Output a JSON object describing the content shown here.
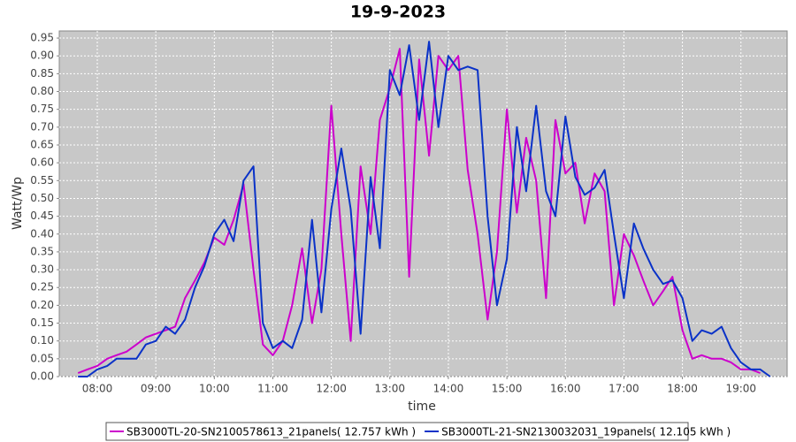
{
  "chart_data": {
    "type": "line",
    "title": "19-9-2023",
    "x_label": "time",
    "y_label": "Watt/Wp",
    "x": [
      7.67,
      7.83,
      8,
      8.17,
      8.33,
      8.5,
      8.67,
      8.83,
      9,
      9.17,
      9.33,
      9.5,
      9.67,
      9.83,
      10,
      10.17,
      10.33,
      10.5,
      10.67,
      10.83,
      11,
      11.17,
      11.33,
      11.5,
      11.67,
      11.83,
      12,
      12.17,
      12.33,
      12.5,
      12.67,
      12.83,
      13,
      13.17,
      13.33,
      13.5,
      13.67,
      13.83,
      14,
      14.17,
      14.33,
      14.5,
      14.67,
      14.83,
      15,
      15.17,
      15.33,
      15.5,
      15.67,
      15.83,
      16,
      16.17,
      16.33,
      16.5,
      16.67,
      16.83,
      17,
      17.17,
      17.33,
      17.5,
      17.67,
      17.83,
      18,
      18.17,
      18.33,
      18.5,
      18.67,
      18.83,
      19,
      19.17,
      19.33,
      19.5
    ],
    "series": [
      {
        "name": "SB3000TL-20-SN2100578613_21panels( 12.757 kWh )",
        "color": "#cc00cc",
        "values": [
          0.01,
          0.02,
          0.03,
          0.05,
          0.06,
          0.07,
          0.09,
          0.11,
          0.12,
          0.13,
          0.14,
          0.22,
          0.27,
          0.32,
          0.39,
          0.37,
          0.44,
          0.54,
          0.3,
          0.09,
          0.06,
          0.1,
          0.2,
          0.36,
          0.15,
          0.3,
          0.76,
          0.4,
          0.1,
          0.59,
          0.4,
          0.72,
          0.81,
          0.92,
          0.28,
          0.89,
          0.62,
          0.9,
          0.86,
          0.9,
          0.58,
          0.4,
          0.16,
          0.35,
          0.75,
          0.46,
          0.67,
          0.55,
          0.22,
          0.72,
          0.57,
          0.6,
          0.43,
          0.57,
          0.52,
          0.2,
          0.4,
          0.34,
          0.27,
          0.2,
          0.24,
          0.28,
          0.13,
          0.05,
          0.06,
          0.05,
          0.05,
          0.04,
          0.02,
          0.02,
          0.01,
          null
        ]
      },
      {
        "name": "SB3000TL-21-SN2130032031_19panels( 12.105 kWh )",
        "color": "#0a32c8",
        "values": [
          0.0,
          0.0,
          0.02,
          0.03,
          0.05,
          0.05,
          0.05,
          0.09,
          0.1,
          0.14,
          0.12,
          0.16,
          0.25,
          0.31,
          0.4,
          0.44,
          0.38,
          0.55,
          0.59,
          0.15,
          0.08,
          0.1,
          0.08,
          0.16,
          0.44,
          0.18,
          0.47,
          0.64,
          0.47,
          0.12,
          0.56,
          0.36,
          0.86,
          0.79,
          0.93,
          0.72,
          0.94,
          0.7,
          0.9,
          0.86,
          0.87,
          0.86,
          0.45,
          0.2,
          0.33,
          0.7,
          0.52,
          0.76,
          0.52,
          0.45,
          0.73,
          0.56,
          0.51,
          0.53,
          0.58,
          0.4,
          0.22,
          0.43,
          0.36,
          0.3,
          0.26,
          0.27,
          0.22,
          0.1,
          0.13,
          0.12,
          0.14,
          0.08,
          0.04,
          0.02,
          0.02,
          0.0
        ]
      }
    ],
    "xlim": [
      7.35,
      19.79
    ],
    "ylim": [
      0,
      0.97
    ],
    "xticks": [
      {
        "value": 8,
        "label": "08:00"
      },
      {
        "value": 9,
        "label": "09:00"
      },
      {
        "value": 10,
        "label": "10:00"
      },
      {
        "value": 11,
        "label": "11:00"
      },
      {
        "value": 12,
        "label": "12:00"
      },
      {
        "value": 13,
        "label": "13:00"
      },
      {
        "value": 14,
        "label": "14:00"
      },
      {
        "value": 15,
        "label": "15:00"
      },
      {
        "value": 16,
        "label": "16:00"
      },
      {
        "value": 17,
        "label": "17:00"
      },
      {
        "value": 18,
        "label": "18:00"
      },
      {
        "value": 19,
        "label": "19:00"
      }
    ],
    "yticks": [
      {
        "value": 0,
        "label": "0.00"
      },
      {
        "value": 0.05,
        "label": "0.05"
      },
      {
        "value": 0.1,
        "label": "0.10"
      },
      {
        "value": 0.15,
        "label": "0.15"
      },
      {
        "value": 0.2,
        "label": "0.20"
      },
      {
        "value": 0.25,
        "label": "0.25"
      },
      {
        "value": 0.3,
        "label": "0.30"
      },
      {
        "value": 0.35,
        "label": "0.35"
      },
      {
        "value": 0.4,
        "label": "0.40"
      },
      {
        "value": 0.45,
        "label": "0.45"
      },
      {
        "value": 0.5,
        "label": "0.50"
      },
      {
        "value": 0.55,
        "label": "0.55"
      },
      {
        "value": 0.6,
        "label": "0.60"
      },
      {
        "value": 0.65,
        "label": "0.65"
      },
      {
        "value": 0.7,
        "label": "0.70"
      },
      {
        "value": 0.75,
        "label": "0.75"
      },
      {
        "value": 0.8,
        "label": "0.80"
      },
      {
        "value": 0.85,
        "label": "0.85"
      },
      {
        "value": 0.9,
        "label": "0.90"
      },
      {
        "value": 0.95,
        "label": "0.95"
      }
    ],
    "grid": true,
    "legend": "bottom"
  }
}
